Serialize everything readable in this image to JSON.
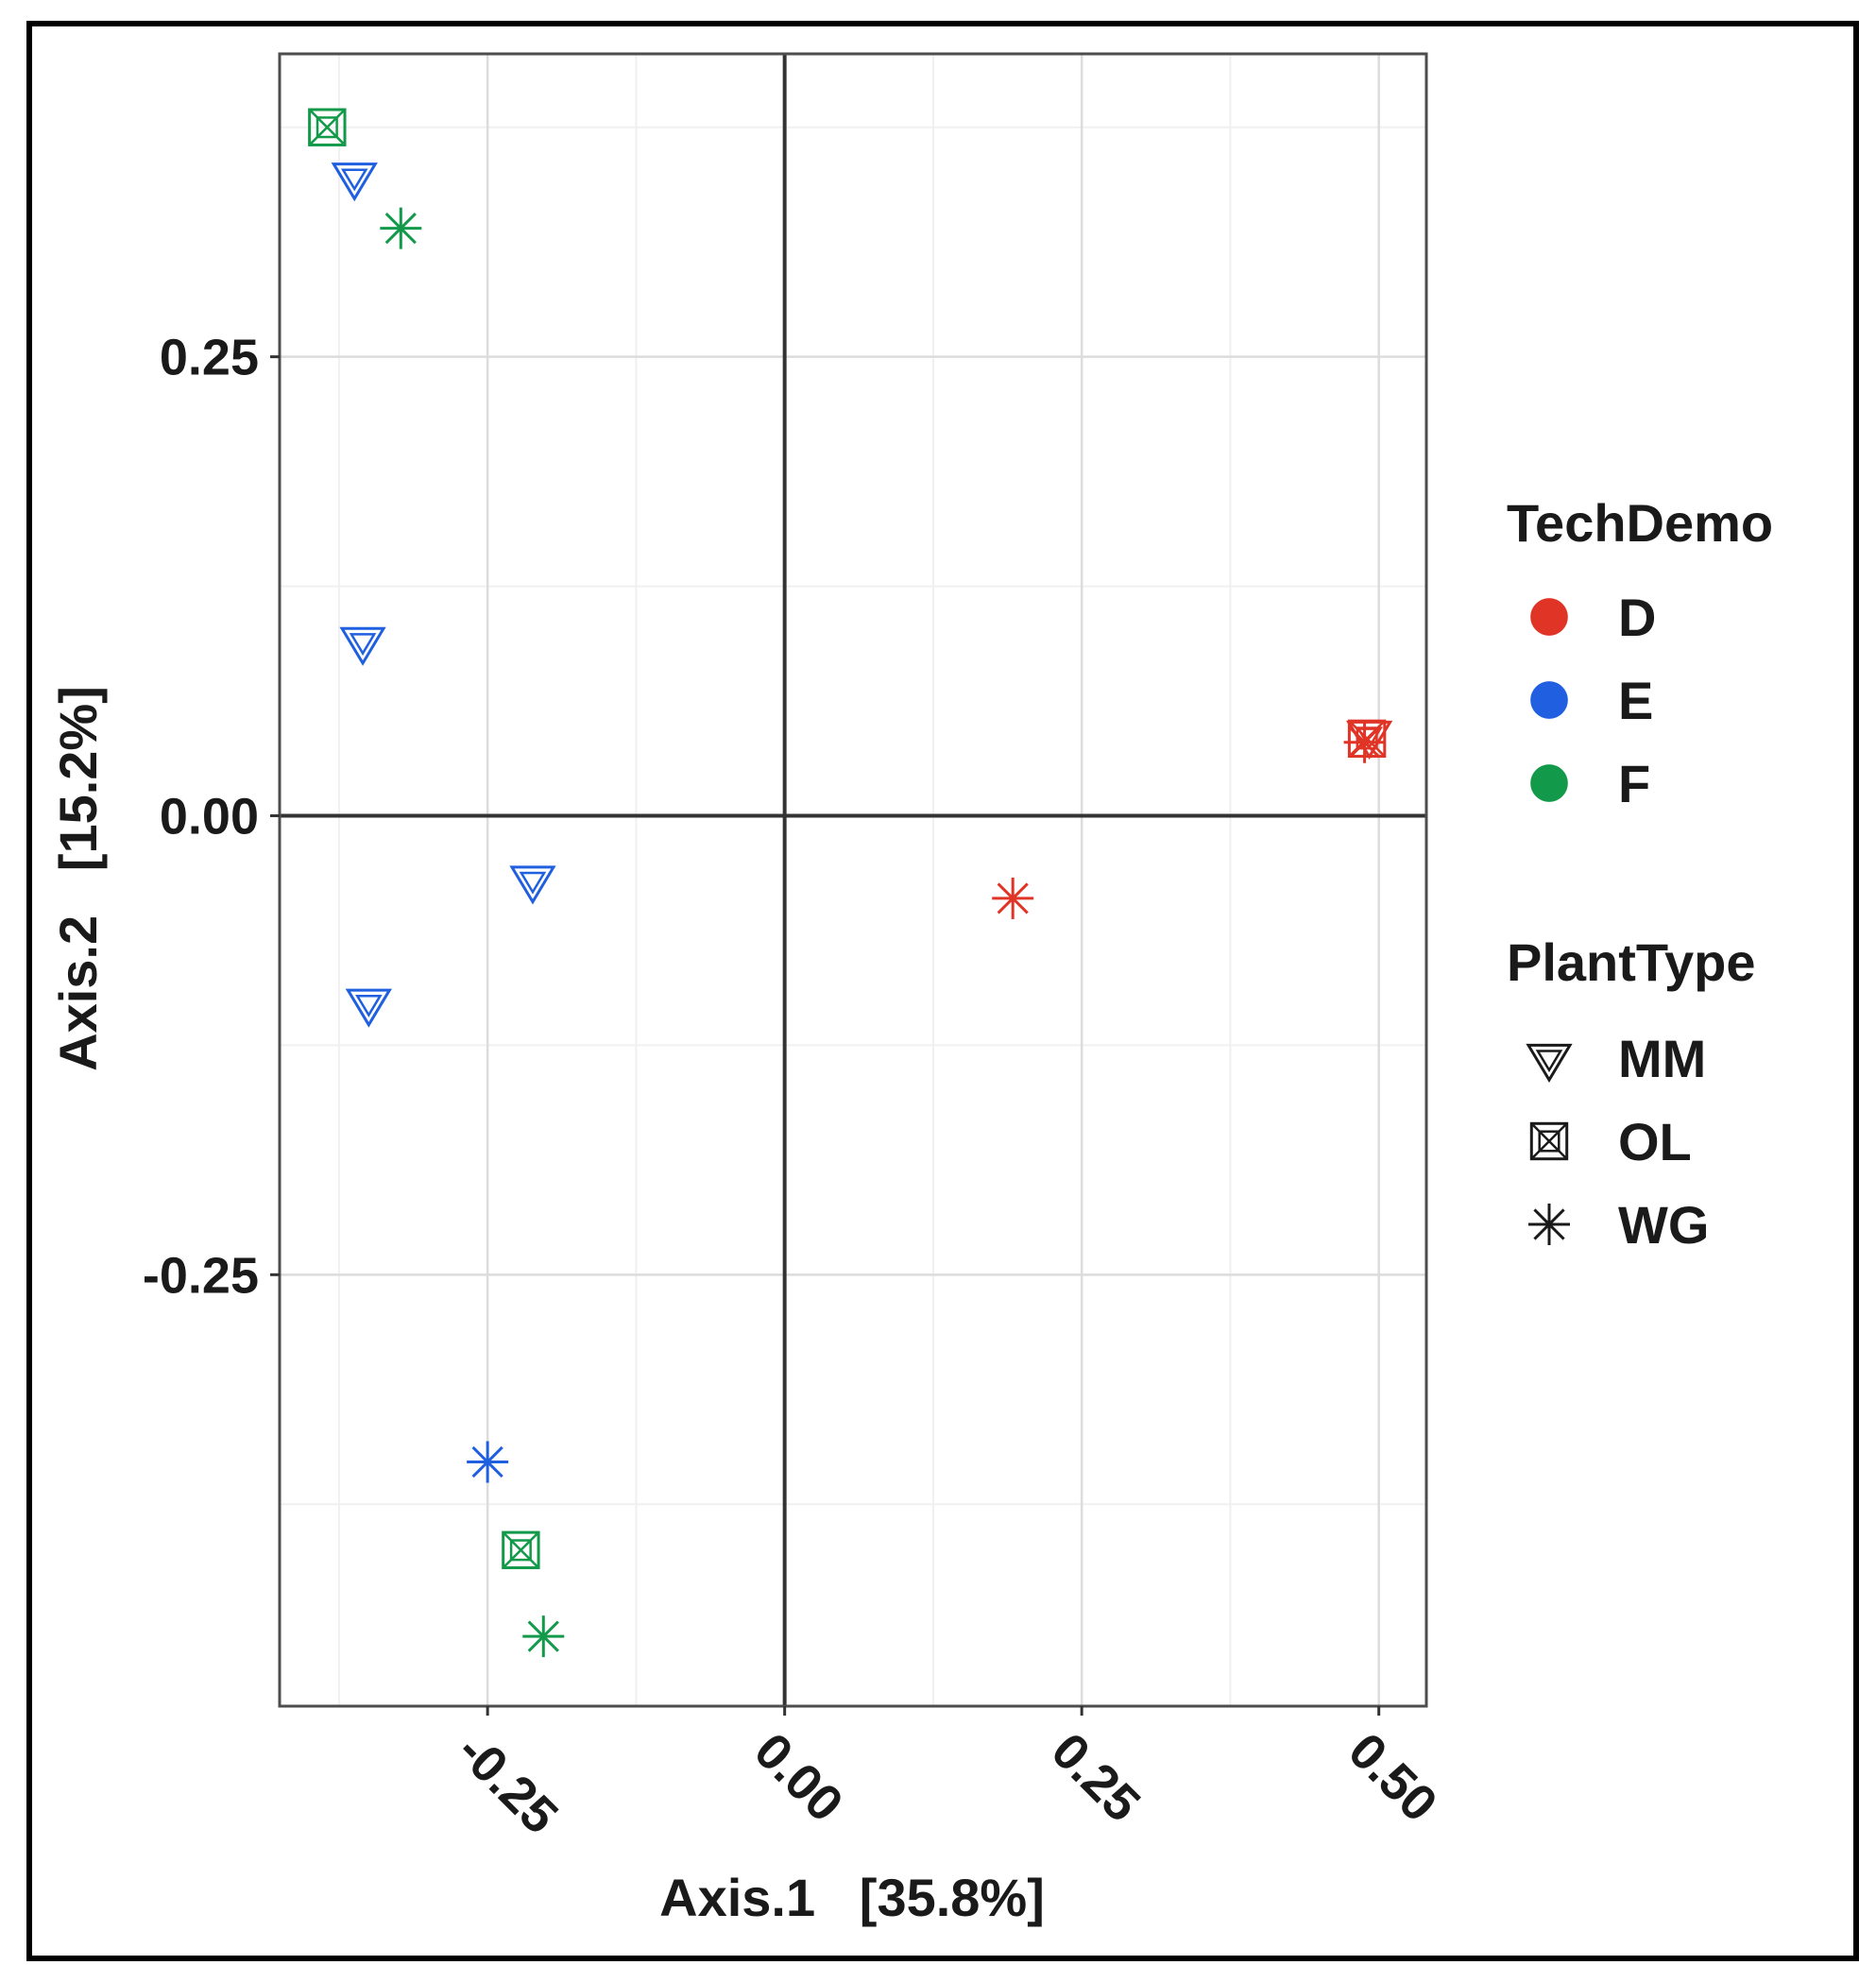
{
  "chart_data": {
    "type": "scatter",
    "title": "",
    "xlabel": "Axis.1   [35.8%]",
    "ylabel": "Axis.2   [15.2%]",
    "xlim": [
      -0.425,
      0.54
    ],
    "ylim": [
      -0.485,
      0.415
    ],
    "xticks": [
      -0.25,
      0.0,
      0.25,
      0.5
    ],
    "xtick_labels": [
      "-0.25",
      "0.00",
      "0.25",
      "0.50"
    ],
    "yticks": [
      -0.25,
      0.0,
      0.25
    ],
    "ytick_labels": [
      "-0.25",
      "0.00",
      "0.25"
    ],
    "grid": true,
    "zero_lines": true,
    "legend_position": "right",
    "color_legend": {
      "title": "TechDemo",
      "items": [
        {
          "label": "D",
          "color": "#e03426"
        },
        {
          "label": "E",
          "color": "#1f5fe0"
        },
        {
          "label": "F",
          "color": "#129a4a"
        }
      ]
    },
    "shape_legend": {
      "title": "PlantType",
      "items": [
        {
          "label": "MM",
          "shape": "triangle-down-open"
        },
        {
          "label": "OL",
          "shape": "square-cross"
        },
        {
          "label": "WG",
          "shape": "asterisk"
        }
      ]
    },
    "points": [
      {
        "x": -0.385,
        "y": 0.375,
        "TechDemo": "F",
        "PlantType": "OL"
      },
      {
        "x": -0.362,
        "y": 0.348,
        "TechDemo": "E",
        "PlantType": "MM"
      },
      {
        "x": -0.323,
        "y": 0.32,
        "TechDemo": "F",
        "PlantType": "WG"
      },
      {
        "x": -0.355,
        "y": 0.095,
        "TechDemo": "E",
        "PlantType": "MM"
      },
      {
        "x": -0.212,
        "y": -0.035,
        "TechDemo": "E",
        "PlantType": "MM"
      },
      {
        "x": -0.35,
        "y": -0.102,
        "TechDemo": "E",
        "PlantType": "MM"
      },
      {
        "x": -0.25,
        "y": -0.352,
        "TechDemo": "E",
        "PlantType": "WG"
      },
      {
        "x": -0.222,
        "y": -0.4,
        "TechDemo": "F",
        "PlantType": "OL"
      },
      {
        "x": -0.203,
        "y": -0.447,
        "TechDemo": "F",
        "PlantType": "WG"
      },
      {
        "x": 0.192,
        "y": -0.045,
        "TechDemo": "D",
        "PlantType": "WG"
      },
      {
        "x": 0.492,
        "y": 0.044,
        "TechDemo": "D",
        "PlantType": "MM"
      },
      {
        "x": 0.49,
        "y": 0.042,
        "TechDemo": "D",
        "PlantType": "OL"
      },
      {
        "x": 0.488,
        "y": 0.04,
        "TechDemo": "D",
        "PlantType": "WG"
      }
    ]
  }
}
